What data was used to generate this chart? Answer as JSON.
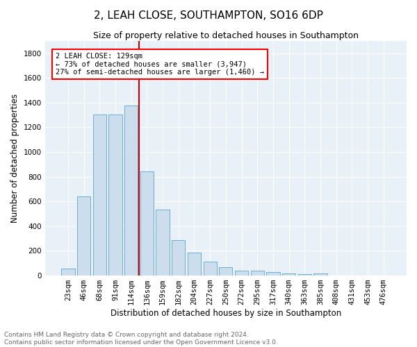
{
  "title1": "2, LEAH CLOSE, SOUTHAMPTON, SO16 6DP",
  "title2": "Size of property relative to detached houses in Southampton",
  "xlabel": "Distribution of detached houses by size in Southampton",
  "ylabel": "Number of detached properties",
  "bar_labels": [
    "23sqm",
    "46sqm",
    "68sqm",
    "91sqm",
    "114sqm",
    "136sqm",
    "159sqm",
    "182sqm",
    "204sqm",
    "227sqm",
    "250sqm",
    "272sqm",
    "295sqm",
    "317sqm",
    "340sqm",
    "363sqm",
    "385sqm",
    "408sqm",
    "431sqm",
    "453sqm",
    "476sqm"
  ],
  "bar_values": [
    55,
    640,
    1305,
    1305,
    1375,
    845,
    530,
    285,
    185,
    110,
    68,
    38,
    38,
    25,
    15,
    8,
    15,
    0,
    0,
    0,
    0
  ],
  "bar_color": "#ccdded",
  "bar_edgecolor": "#6aaed6",
  "vline_x": 5.0,
  "vline_color": "#cc0000",
  "annotation_line1": "2 LEAH CLOSE: 129sqm",
  "annotation_line2": "← 73% of detached houses are smaller (3,947)",
  "annotation_line3": "27% of semi-detached houses are larger (1,460) →",
  "ylim": [
    0,
    1900
  ],
  "yticks": [
    0,
    200,
    400,
    600,
    800,
    1000,
    1200,
    1400,
    1600,
    1800
  ],
  "bg_color": "#e8f0f8",
  "fig_bg_color": "#ffffff",
  "footer": "Contains HM Land Registry data © Crown copyright and database right 2024.\nContains public sector information licensed under the Open Government Licence v3.0.",
  "title1_fontsize": 11,
  "title2_fontsize": 9,
  "xlabel_fontsize": 8.5,
  "ylabel_fontsize": 8.5,
  "tick_fontsize": 7.5,
  "annotation_fontsize": 7.5,
  "footer_fontsize": 6.5
}
